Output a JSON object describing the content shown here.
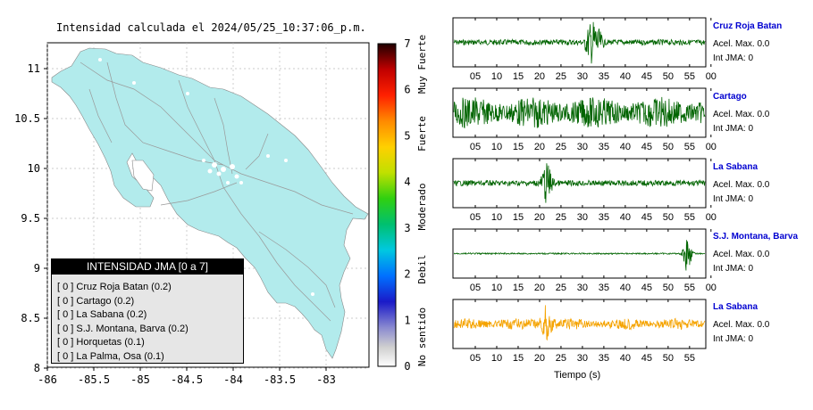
{
  "map": {
    "title": "Intensidad calculada el 2024/05/25_10:37:06_p.m.",
    "y_ticks": [
      "11",
      "10.5",
      "10",
      "9.5",
      "9",
      "8.5",
      "8"
    ],
    "x_ticks": [
      "-86",
      "-85.5",
      "-85",
      "-84.5",
      "-84",
      "-83.5",
      "-83"
    ],
    "land_color": "#b2ebec",
    "sea_color": "#ffffff"
  },
  "colorbar": {
    "ticks": [
      "7",
      "6",
      "5",
      "4",
      "3",
      "2",
      "1",
      "0"
    ],
    "categories": [
      "Muy Fuerte",
      "Fuerte",
      "Moderado",
      "Debil",
      "No sentido"
    ]
  },
  "legend": {
    "title": "INTENSIDAD JMA [0 a 7]",
    "items": [
      {
        "label": "[ 0 ]  Cruz Roja Batan (0.2)"
      },
      {
        "label": "[ 0 ]  Cartago (0.2)"
      },
      {
        "label": "[ 0 ]  La Sabana (0.2)"
      },
      {
        "label": "[ 0 ]  S.J. Montana, Barva (0.2)"
      },
      {
        "label": "[ 0 ]  Horquetas (0.1)"
      },
      {
        "label": "[ 0 ]  La Palma, Osa (0.1)"
      }
    ]
  },
  "stations": [
    {
      "name": "Cruz Roja Batan",
      "acel": "Acel. Max. 0.0",
      "int": "Int JMA: 0",
      "color": "#006400"
    },
    {
      "name": "Cartago",
      "acel": "Acel. Max. 0.0",
      "int": "Int JMA: 0",
      "color": "#006400"
    },
    {
      "name": "La Sabana",
      "acel": "Acel. Max. 0.0",
      "int": "Int JMA: 0",
      "color": "#006400"
    },
    {
      "name": "S.J. Montana, Barva",
      "acel": "Acel. Max. 0.0",
      "int": "Int JMA: 0",
      "color": "#006400"
    },
    {
      "name": "La Sabana",
      "acel": "Acel. Max. 0.0",
      "int": "Int JMA: 0",
      "color": "#f5a300"
    }
  ],
  "time_ticks": [
    "05",
    "10",
    "15",
    "20",
    "25",
    "30",
    "35",
    "40",
    "45",
    "50",
    "55",
    "00"
  ],
  "time_ticks_last": [
    "05",
    "10",
    "15",
    "20",
    "25",
    "30",
    "35",
    "40",
    "45",
    "50",
    "55"
  ],
  "x_axis_label": "Tiempo (s)"
}
